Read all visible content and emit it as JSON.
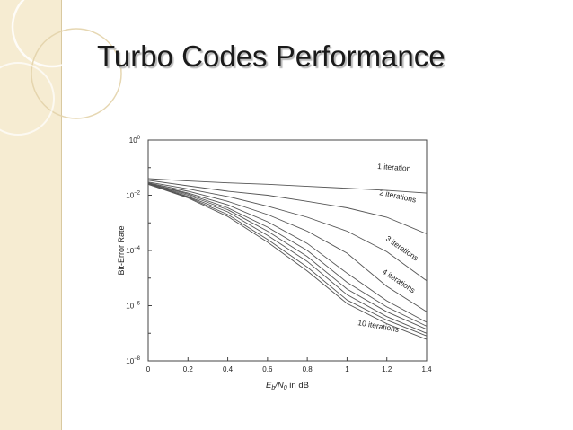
{
  "slide": {
    "title": "Turbo Codes Performance"
  },
  "chart_data": {
    "type": "line",
    "xlabel_main": "E",
    "xlabel_sub1": "b",
    "xlabel_slash": "/N",
    "xlabel_sub2": "0",
    "xlabel_rest": " in dB",
    "ylabel": "Bit-Error Rate",
    "xlim": [
      0,
      1.4
    ],
    "ylim_log10": [
      -8,
      0
    ],
    "y_scale": "log",
    "grid": false,
    "x_ticks": [
      "0",
      "0.2",
      "0.4",
      "0.6",
      "0.8",
      "1",
      "1.2",
      "1.4"
    ],
    "y_ticks": [
      {
        "base": "10",
        "exp": "0",
        "value": 1
      },
      {
        "base": "10",
        "exp": "−2",
        "value": 0.01
      },
      {
        "base": "10",
        "exp": "−4",
        "value": 0.0001
      },
      {
        "base": "10",
        "exp": "−6",
        "value": 1e-06
      },
      {
        "base": "10",
        "exp": "−8",
        "value": 1e-08
      }
    ],
    "line_color": "#555555",
    "annotations": [
      "1 iteration",
      "2 iterations",
      "3 iterations",
      "4 iterations",
      "10 iterations"
    ],
    "series": [
      {
        "x": [
          0,
          0.2,
          0.4,
          0.6,
          0.8,
          1.0,
          1.2,
          1.4
        ],
        "y": [
          0.04,
          0.033,
          0.028,
          0.025,
          0.021,
          0.018,
          0.015,
          0.012
        ]
      },
      {
        "x": [
          0,
          0.2,
          0.4,
          0.6,
          0.8,
          1.0,
          1.2,
          1.4
        ],
        "y": [
          0.035,
          0.022,
          0.014,
          0.01,
          0.006,
          0.0035,
          0.0016,
          0.0004
        ]
      },
      {
        "x": [
          0,
          0.2,
          0.4,
          0.6,
          0.8,
          1.0,
          1.2,
          1.4
        ],
        "y": [
          0.03,
          0.017,
          0.009,
          0.004,
          0.0016,
          0.0005,
          9e-05,
          8e-06
        ]
      },
      {
        "x": [
          0,
          0.2,
          0.4,
          0.6,
          0.8,
          1.0,
          1.2,
          1.4
        ],
        "y": [
          0.028,
          0.014,
          0.006,
          0.002,
          0.0005,
          8e-05,
          5e-06,
          6e-07
        ]
      },
      {
        "x": [
          0,
          0.2,
          0.4,
          0.6,
          0.8,
          1.0,
          1.2,
          1.4
        ],
        "y": [
          0.027,
          0.012,
          0.0045,
          0.0011,
          0.00018,
          1.5e-05,
          1.5e-06,
          2.5e-07
        ]
      },
      {
        "x": [
          0,
          0.2,
          0.4,
          0.6,
          0.8,
          1.0,
          1.2,
          1.4
        ],
        "y": [
          0.027,
          0.011,
          0.0035,
          0.0007,
          0.0001,
          7e-06,
          9e-07,
          1.8e-07
        ]
      },
      {
        "x": [
          0,
          0.2,
          0.4,
          0.6,
          0.8,
          1.0,
          1.2,
          1.4
        ],
        "y": [
          0.026,
          0.01,
          0.003,
          0.0005,
          6e-05,
          4e-06,
          6e-07,
          1.4e-07
        ]
      },
      {
        "x": [
          0,
          0.2,
          0.4,
          0.6,
          0.8,
          1.0,
          1.2,
          1.4
        ],
        "y": [
          0.026,
          0.009,
          0.0025,
          0.00035,
          4e-05,
          2.5e-06,
          4e-07,
          1e-07
        ]
      },
      {
        "x": [
          0,
          0.2,
          0.4,
          0.6,
          0.8,
          1.0,
          1.2,
          1.4
        ],
        "y": [
          0.025,
          0.0085,
          0.002,
          0.00025,
          2.5e-05,
          1.6e-06,
          3e-07,
          8e-08
        ]
      },
      {
        "x": [
          0,
          0.2,
          0.4,
          0.6,
          0.8,
          1.0,
          1.2,
          1.4
        ],
        "y": [
          0.025,
          0.008,
          0.0017,
          0.0002,
          1.8e-05,
          1.2e-06,
          2.2e-07,
          6e-08
        ]
      }
    ]
  }
}
